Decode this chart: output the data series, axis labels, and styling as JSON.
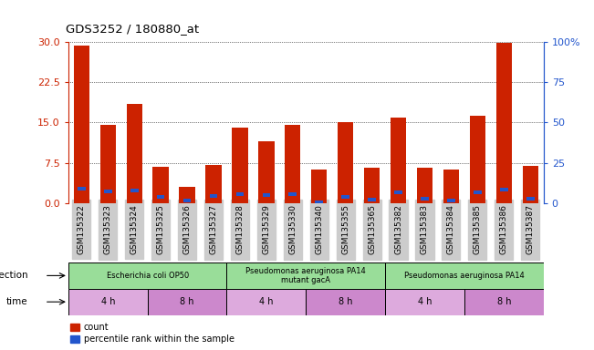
{
  "title": "GDS3252 / 180880_at",
  "samples": [
    "GSM135322",
    "GSM135323",
    "GSM135324",
    "GSM135325",
    "GSM135326",
    "GSM135327",
    "GSM135328",
    "GSM135329",
    "GSM135330",
    "GSM135340",
    "GSM135355",
    "GSM135365",
    "GSM135382",
    "GSM135383",
    "GSM135384",
    "GSM135385",
    "GSM135386",
    "GSM135387"
  ],
  "counts": [
    29.3,
    14.5,
    18.5,
    6.8,
    3.0,
    7.1,
    14.0,
    11.5,
    14.5,
    6.2,
    15.0,
    6.5,
    16.0,
    6.5,
    6.2,
    16.3,
    29.8,
    7.0
  ],
  "percentile_ranks": [
    9.0,
    7.0,
    8.0,
    4.0,
    1.5,
    4.5,
    5.5,
    5.0,
    5.5,
    0.5,
    4.0,
    2.0,
    6.5,
    2.5,
    1.5,
    6.5,
    8.5,
    2.5
  ],
  "ylim_left": [
    0,
    30
  ],
  "ylim_right": [
    0,
    100
  ],
  "yticks_left": [
    0,
    7.5,
    15,
    22.5,
    30
  ],
  "yticks_right": [
    0,
    25,
    50,
    75,
    100
  ],
  "bar_color": "#cc2200",
  "blue_color": "#2255cc",
  "infection_groups": [
    {
      "label": "Escherichia coli OP50",
      "start": 0,
      "end": 6
    },
    {
      "label": "Pseudomonas aeruginosa PA14\nmutant gacA",
      "start": 6,
      "end": 12
    },
    {
      "label": "Pseudomonas aeruginosa PA14",
      "start": 12,
      "end": 18
    }
  ],
  "time_groups": [
    {
      "label": "4 h",
      "start": 0,
      "end": 3
    },
    {
      "label": "8 h",
      "start": 3,
      "end": 6
    },
    {
      "label": "4 h",
      "start": 6,
      "end": 9
    },
    {
      "label": "8 h",
      "start": 9,
      "end": 12
    },
    {
      "label": "4 h",
      "start": 12,
      "end": 15
    },
    {
      "label": "8 h",
      "start": 15,
      "end": 18
    }
  ],
  "infection_color": "#99dd99",
  "time_color_a": "#ddaadd",
  "time_color_b": "#cc88cc",
  "bg_color": "#ffffff",
  "tick_bg_color": "#cccccc",
  "label_infection": "infection",
  "label_time": "time",
  "legend_items": [
    "count",
    "percentile rank within the sample"
  ]
}
